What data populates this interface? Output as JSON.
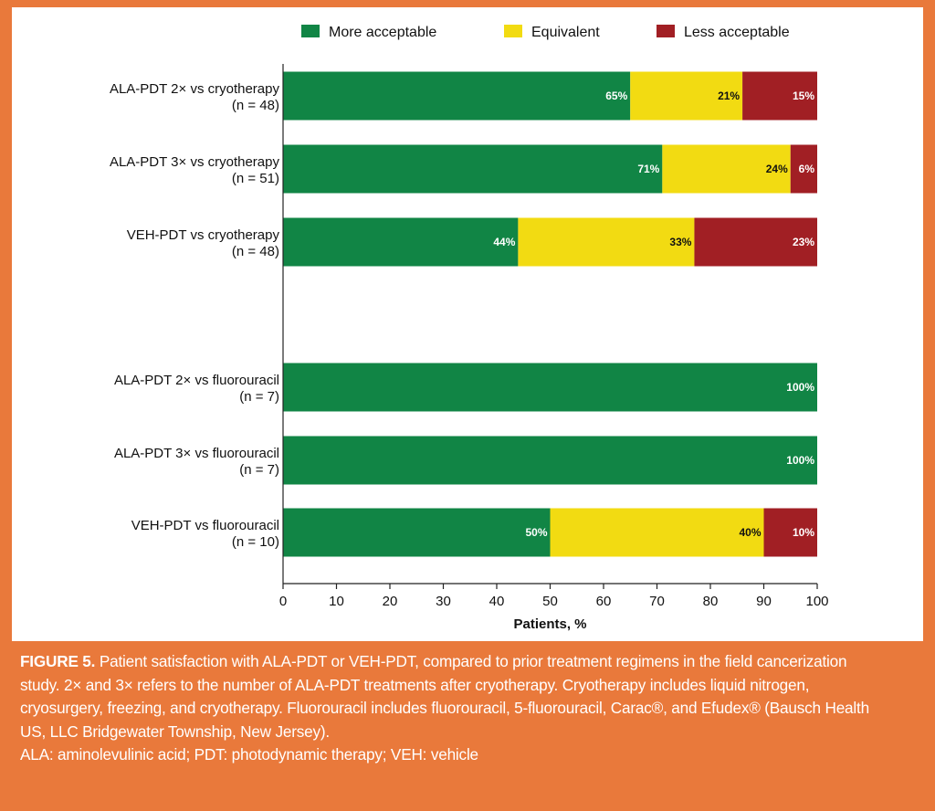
{
  "chart_data": {
    "type": "bar",
    "orientation": "horizontal",
    "stacked": true,
    "categories": [
      [
        "ALA-PDT 2× vs cryotherapy",
        "(n = 48)"
      ],
      [
        "ALA-PDT 3× vs cryotherapy",
        "(n = 51)"
      ],
      [
        "VEH-PDT vs cryotherapy",
        "(n = 48)"
      ],
      [
        "ALA-PDT 2× vs fluorouracil",
        "(n = 7)"
      ],
      [
        "ALA-PDT 3× vs fluorouracil",
        "(n = 7)"
      ],
      [
        "VEH-PDT vs fluorouracil",
        "(n = 10)"
      ]
    ],
    "series": [
      {
        "name": "More acceptable",
        "color": "#118545",
        "label_color": "#ffffff",
        "values": [
          65,
          71,
          44,
          100,
          100,
          50
        ]
      },
      {
        "name": "Equivalent",
        "color": "#f2db12",
        "label_color": "#111111",
        "values": [
          21,
          24,
          33,
          0,
          0,
          40
        ]
      },
      {
        "name": "Less acceptable",
        "color": "#a11f24",
        "label_color": "#ffffff",
        "values": [
          15,
          6,
          23,
          0,
          0,
          10
        ]
      }
    ],
    "xlabel": "Patients, %",
    "ylabel": "",
    "xlim": [
      0,
      100
    ],
    "xticks": [
      0,
      10,
      20,
      30,
      40,
      50,
      60,
      70,
      80,
      90,
      100
    ],
    "grid": false,
    "legend_position": "top"
  },
  "caption": {
    "label": "FIGURE 5.",
    "lines": [
      "Patient satisfaction with ALA-PDT or VEH-PDT, compared to prior treatment regimens in the field cancerization",
      "study. 2× and 3× refers to the number of ALA-PDT treatments after cryotherapy. Cryotherapy includes liquid nitrogen,",
      "cryosurgery, freezing, and cryotherapy. Fluorouracil includes fluorouracil, 5-fluorouracil, Carac®, and Efudex® (Bausch Health",
      "US, LLC Bridgewater Township, New Jersey).",
      "ALA: aminolevulinic acid; PDT: photodynamic therapy; VEH: vehicle"
    ]
  },
  "colors": {
    "frame": "#e9793b",
    "panel": "#ffffff"
  }
}
